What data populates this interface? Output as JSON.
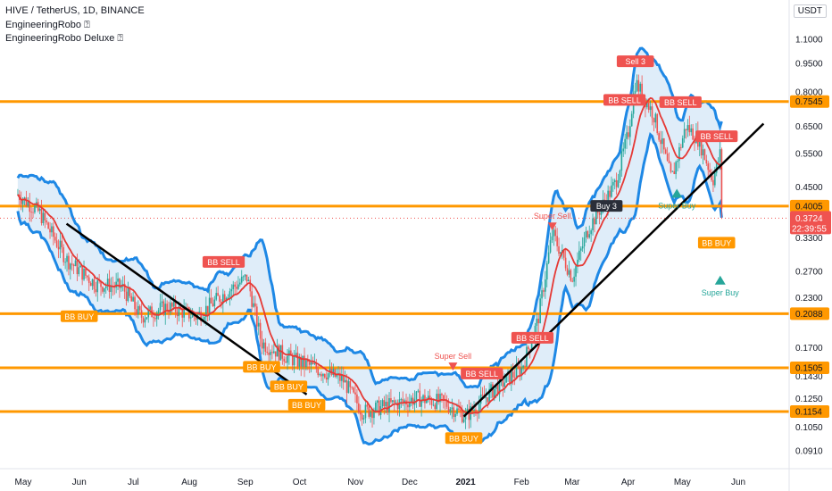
{
  "header": {
    "symbol": "HIVE / TetherUS, 1D, BINANCE",
    "indicator1": "EngineeringRobo ⍰",
    "indicator2": "EngineeringRobo Deluxe ⍰",
    "currency": "USDT"
  },
  "colors": {
    "candle_up": "#26a69a",
    "candle_down": "#ef5350",
    "band": "#1e88e5",
    "band_fill": "#d7e9f8",
    "basis": "#e53935",
    "level_line": "#ff9800",
    "trendline": "#000000",
    "buy_label": "#ff9800",
    "sell_label": "#ef5350",
    "super_buy": "#26a69a",
    "price_tag": "#ef5350"
  },
  "chart_data": {
    "type": "candlestick",
    "scale": "log",
    "price_ticks": [
      "1.1000",
      "0.9500",
      "0.8000",
      "0.6500",
      "0.5500",
      "0.4500",
      "0.3300",
      "0.2700",
      "0.2300",
      "0.1700",
      "0.1430",
      "0.1250",
      "0.1050",
      "0.0910"
    ],
    "time_ticks": [
      "May",
      "Jun",
      "Jul",
      "Aug",
      "Sep",
      "Oct",
      "Nov",
      "Dec",
      "2021",
      "Feb",
      "Mar",
      "Apr",
      "May",
      "Jun"
    ],
    "horizontal_levels": [
      "0.7545",
      "0.4005",
      "0.2088",
      "0.1505",
      "0.1154"
    ],
    "current_price": "0.3724",
    "countdown": "22:39:55",
    "trendlines": [
      {
        "from_date": "2020-05-25",
        "from_price": 0.36,
        "to_date": "2020-10-05",
        "to_price": 0.128
      },
      {
        "from_date": "2020-12-31",
        "from_price": 0.112,
        "to_date": "2021-06-15",
        "to_price": 0.66
      }
    ],
    "price_path": [
      {
        "date": "2020-04-28",
        "price": 0.43
      },
      {
        "date": "2020-05-10",
        "price": 0.385
      },
      {
        "date": "2020-05-25",
        "price": 0.29
      },
      {
        "date": "2020-06-10",
        "price": 0.25
      },
      {
        "date": "2020-06-25",
        "price": 0.245
      },
      {
        "date": "2020-07-05",
        "price": 0.205
      },
      {
        "date": "2020-07-20",
        "price": 0.218
      },
      {
        "date": "2020-08-05",
        "price": 0.205
      },
      {
        "date": "2020-08-20",
        "price": 0.235
      },
      {
        "date": "2020-09-02",
        "price": 0.26
      },
      {
        "date": "2020-09-10",
        "price": 0.175
      },
      {
        "date": "2020-09-25",
        "price": 0.16
      },
      {
        "date": "2020-10-10",
        "price": 0.15
      },
      {
        "date": "2020-10-25",
        "price": 0.14
      },
      {
        "date": "2020-11-05",
        "price": 0.115
      },
      {
        "date": "2020-11-20",
        "price": 0.12
      },
      {
        "date": "2020-12-05",
        "price": 0.125
      },
      {
        "date": "2020-12-20",
        "price": 0.122
      },
      {
        "date": "2021-01-01",
        "price": 0.112
      },
      {
        "date": "2021-01-15",
        "price": 0.13
      },
      {
        "date": "2021-02-01",
        "price": 0.15
      },
      {
        "date": "2021-02-10",
        "price": 0.2
      },
      {
        "date": "2021-02-18",
        "price": 0.34
      },
      {
        "date": "2021-03-01",
        "price": 0.26
      },
      {
        "date": "2021-03-10",
        "price": 0.35
      },
      {
        "date": "2021-03-25",
        "price": 0.46
      },
      {
        "date": "2021-04-01",
        "price": 0.62
      },
      {
        "date": "2021-04-05",
        "price": 0.85
      },
      {
        "date": "2021-04-15",
        "price": 0.7
      },
      {
        "date": "2021-04-25",
        "price": 0.47
      },
      {
        "date": "2021-05-03",
        "price": 0.65
      },
      {
        "date": "2021-05-10",
        "price": 0.6
      },
      {
        "date": "2021-05-18",
        "price": 0.47
      },
      {
        "date": "2021-05-22",
        "price": 0.55
      },
      {
        "date": "2021-05-23",
        "price": 0.3724
      }
    ],
    "signals": [
      {
        "text": "BB BUY",
        "kind": "buy",
        "date": "2020-06-01",
        "price": 0.205
      },
      {
        "text": "BB SELL",
        "kind": "sell",
        "date": "2020-08-20",
        "price": 0.285
      },
      {
        "text": "BB BUY",
        "kind": "buy",
        "date": "2020-09-10",
        "price": 0.151
      },
      {
        "text": "BB BUY",
        "kind": "buy",
        "date": "2020-09-25",
        "price": 0.134
      },
      {
        "text": "BB BUY",
        "kind": "buy",
        "date": "2020-10-05",
        "price": 0.12
      },
      {
        "text": "Super Sell",
        "kind": "super_sell",
        "date": "2020-12-25",
        "price": 0.152
      },
      {
        "text": "BB SELL",
        "kind": "sell",
        "date": "2021-01-10",
        "price": 0.145
      },
      {
        "text": "BB BUY",
        "kind": "buy",
        "date": "2020-12-31",
        "price": 0.098
      },
      {
        "text": "BB SELL",
        "kind": "sell",
        "date": "2021-02-07",
        "price": 0.18
      },
      {
        "text": "Super Sell",
        "kind": "super_sell",
        "date": "2021-02-18",
        "price": 0.355
      },
      {
        "text": "Buy 3",
        "kind": "buy3",
        "date": "2021-03-20",
        "price": 0.4
      },
      {
        "text": "Sell 3",
        "kind": "sell3",
        "date": "2021-04-05",
        "price": 0.96
      },
      {
        "text": "BB SELL",
        "kind": "sell",
        "date": "2021-03-30",
        "price": 0.76
      },
      {
        "text": "BB SELL",
        "kind": "sell",
        "date": "2021-04-30",
        "price": 0.75
      },
      {
        "text": "Super Buy",
        "kind": "super_buy",
        "date": "2021-04-28",
        "price": 0.44
      },
      {
        "text": "BB SELL",
        "kind": "sell",
        "date": "2021-05-20",
        "price": 0.61
      },
      {
        "text": "BB BUY",
        "kind": "buy",
        "date": "2021-05-20",
        "price": 0.32
      },
      {
        "text": "Super Buy",
        "kind": "super_buy",
        "date": "2021-05-22",
        "price": 0.26
      }
    ]
  }
}
